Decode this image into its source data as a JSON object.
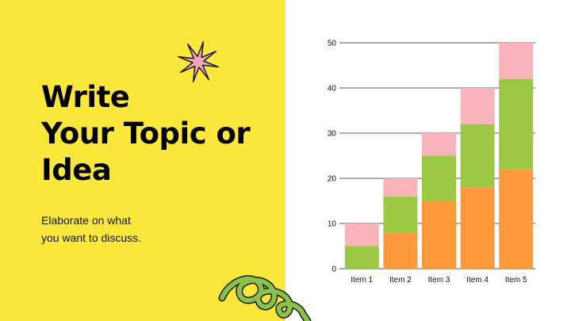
{
  "slide": {
    "title_lines": [
      "Write",
      "Your Topic or",
      "Idea"
    ],
    "body_lines": [
      "Elaborate on what",
      "you want to discuss."
    ],
    "colors": {
      "background_left": "#FCE83A",
      "background_right": "#FFFFFF",
      "text": "#000000",
      "star_fill": "#F4A7B9",
      "swirl_stroke": "#8BC34A"
    },
    "decorations": [
      "star-doodle",
      "swirl-doodle"
    ]
  },
  "chart_data": {
    "type": "bar",
    "stacked": true,
    "categories": [
      "Item 1",
      "Item 2",
      "Item 3",
      "Item 4",
      "Item 5"
    ],
    "series": [
      {
        "color": "#FF9A3C",
        "values": [
          0,
          8,
          15,
          18,
          22
        ]
      },
      {
        "color": "#9BC943",
        "values": [
          5,
          8,
          10,
          14,
          20
        ]
      },
      {
        "color": "#FBB4BC",
        "values": [
          5,
          4,
          5,
          8,
          8
        ]
      }
    ],
    "yticks": [
      0,
      10,
      20,
      30,
      40,
      50
    ],
    "ylim": [
      0,
      50
    ],
    "grid": true
  }
}
